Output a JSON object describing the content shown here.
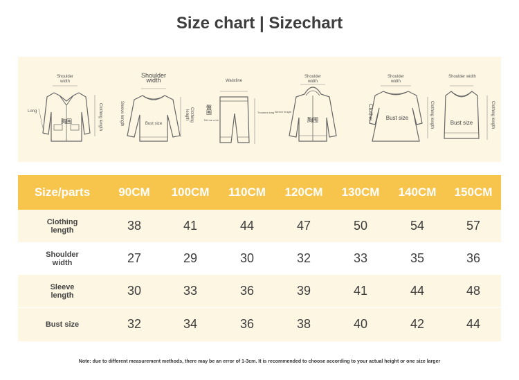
{
  "title": "Size chart | Sizechart",
  "illustrations": [
    {
      "name": "shirt",
      "labels": {
        "top": "Shoulder width",
        "left": "Long",
        "right": "Clothing length",
        "center": "胸围"
      }
    },
    {
      "name": "sweater",
      "labels": {
        "top": "Shoulder width",
        "left": "Sleeve length",
        "right": "Clothing length",
        "center": "Bust size"
      }
    },
    {
      "name": "pants",
      "labels": {
        "top": "Waistline",
        "left": "臀围",
        "left_small": "Tell me a lot",
        "right": "Trousers long"
      }
    },
    {
      "name": "hoodie",
      "labels": {
        "top": "Shoulder width",
        "left": "Sleeve length",
        "center": "胸围"
      }
    },
    {
      "name": "dress",
      "labels": {
        "top": "Shoulder width",
        "left": "Clothe:",
        "right": "Clothing length",
        "center": "Bust size"
      }
    },
    {
      "name": "vest",
      "labels": {
        "top": "Shoulder width",
        "right": "Clothing length",
        "center": "Bust size"
      }
    }
  ],
  "table": {
    "header": {
      "label": "Size/parts",
      "sizes": [
        "90CM",
        "100CM",
        "110CM",
        "120CM",
        "130CM",
        "140CM",
        "150CM"
      ]
    },
    "rows": [
      {
        "label": "Clothing length",
        "values": [
          "38",
          "41",
          "44",
          "47",
          "50",
          "54",
          "57"
        ]
      },
      {
        "label": "Shoulder width",
        "values": [
          "27",
          "29",
          "30",
          "32",
          "33",
          "35",
          "36"
        ]
      },
      {
        "label": "Sleeve length",
        "values": [
          "30",
          "33",
          "36",
          "39",
          "41",
          "44",
          "48"
        ]
      },
      {
        "label": "Bust size",
        "values": [
          "32",
          "34",
          "36",
          "38",
          "40",
          "42",
          "44"
        ]
      }
    ]
  },
  "note": "Note: due to different measurement methods, there may be an error of 1-3cm. It is recommended to choose according to your actual height or one size larger",
  "colors": {
    "header": "#f7c44c",
    "panel": "#fdf6e3",
    "text": "#3d3d3d"
  }
}
